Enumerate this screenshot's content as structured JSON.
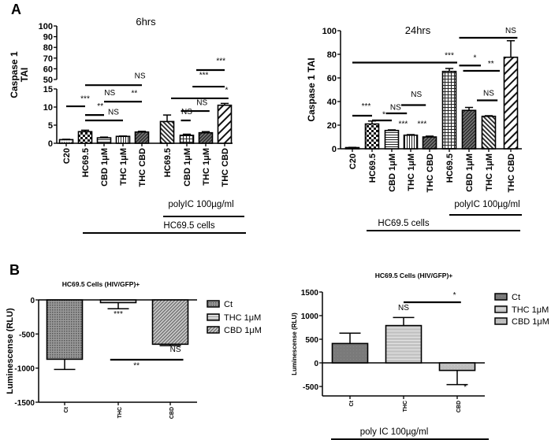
{
  "panel_labels": [
    "A",
    "B"
  ],
  "chart_data": [
    {
      "type": "bar",
      "title": "6hrs",
      "ylabel": "Caspase 1 TAI",
      "ylim": [
        0,
        100
      ],
      "broken_axis": [
        15,
        50
      ],
      "y_ticks": [
        0,
        5,
        10,
        15,
        50,
        60,
        70,
        80,
        90,
        100
      ],
      "categories": [
        "C20",
        "HC69.5",
        "CBD 1μM",
        "THC 1μM",
        "THC CBD",
        "HC69.5",
        "CBD 1μM",
        "THC 1μM",
        "THC CBD"
      ],
      "values": [
        1.0,
        3.2,
        1.5,
        1.9,
        3.1,
        6.0,
        2.2,
        2.9,
        10.5
      ],
      "errors": [
        0.1,
        0.4,
        0.2,
        0.1,
        0.2,
        1.8,
        0.3,
        0.3,
        0.5
      ],
      "fills": [
        "dots",
        "checker",
        "hlines",
        "vlines",
        "diagdense",
        "diagback",
        "grid",
        "diagdense",
        "diagwide"
      ],
      "group_labels": [
        "polyIC 100µg/ml",
        "HC69.5 cells"
      ],
      "annotations": [
        {
          "label": "***",
          "from": 0,
          "to": 1,
          "y": 10.2,
          "label_at": 1.0,
          "label_y": 11.6
        },
        {
          "label": "**",
          "from": 1,
          "to": 2,
          "y": 7.8,
          "label_at": 1.8,
          "label_y": 9.6
        },
        {
          "label": "NS",
          "from": 1,
          "to": 3,
          "y": 6.3,
          "label_at": 2.5,
          "label_y": 7.9
        },
        {
          "label": "NS",
          "from": 2,
          "to": 3,
          "y": 11.5,
          "label_at": 2.3,
          "label_y": 13.3
        },
        {
          "label": "**",
          "from": 3,
          "to": 4,
          "y": 11.5,
          "label_at": 3.6,
          "label_y": 13.1
        },
        {
          "label": "NS",
          "from": 1,
          "to": 4,
          "y": 29,
          "label_at": 3.9,
          "label_y": 51
        },
        {
          "label": "NS",
          "from": 5.7,
          "to": 6.2,
          "y": 6.3,
          "label_at": 6.0,
          "label_y": 8.0
        },
        {
          "label": "NS",
          "from": 5.7,
          "to": 7.2,
          "y": 8.9,
          "label_at": 6.8,
          "label_y": 10.5
        },
        {
          "label": "*",
          "from": 5.2,
          "to": 8.2,
          "y": 12.4,
          "label_at": 8.1,
          "label_y": 14.0
        },
        {
          "label": "***",
          "from": 6.3,
          "to": 8.0,
          "y": 23.5,
          "label_at": 6.9,
          "label_y": 52
        },
        {
          "label": "***",
          "from": 6.5,
          "to": 8.0,
          "y": 58.8,
          "label_at": 7.8,
          "label_y": 65
        }
      ]
    },
    {
      "type": "bar",
      "title": "24hrs",
      "ylabel": "Caspase 1 TAI",
      "ylim": [
        0,
        100
      ],
      "y_ticks": [
        0,
        20,
        40,
        60,
        80,
        100
      ],
      "categories": [
        "C20",
        "HC69.5",
        "CBD 1μM",
        "THC 1μM",
        "THC CBD",
        "HC69.5",
        "CBD 1μM",
        "THC 1μM",
        "THC CBD"
      ],
      "values": [
        1.0,
        21.0,
        15.5,
        11.5,
        10.0,
        65.5,
        32.5,
        27.5,
        77.5
      ],
      "errors": [
        0.2,
        2.5,
        0.5,
        0.5,
        0.7,
        2.5,
        2.5,
        0.5,
        14.0
      ],
      "fills": [
        "dots",
        "checker",
        "hlines",
        "vlines",
        "diagdense",
        "grid",
        "diagdense",
        "diagback",
        "diagwide"
      ],
      "group_labels": [
        "polyIC 100µg/ml",
        "HC69.5 cells"
      ],
      "annotations": [
        {
          "label": "***",
          "from": 0,
          "to": 1,
          "y": 28,
          "label_at": 0.7,
          "label_y": 34
        },
        {
          "label": "*",
          "from": 1,
          "to": 2,
          "y": 24,
          "label_at": 1.6,
          "label_y": 27
        },
        {
          "label": "NS",
          "from": 1.7,
          "to": 2.8,
          "y": 30,
          "label_at": 2.2,
          "label_y": 33
        },
        {
          "label": "NS",
          "from": 2.5,
          "to": 3.8,
          "y": 37,
          "label_at": 3.3,
          "label_y": 44
        },
        {
          "label": "***",
          "from": 2.6,
          "to": 2.6,
          "y": null,
          "label_at": 2.6,
          "label_y": 19
        },
        {
          "label": "***",
          "from": 3.6,
          "to": 3.6,
          "y": null,
          "label_at": 3.6,
          "label_y": 19
        },
        {
          "label": "***",
          "from": 0,
          "to": 5.4,
          "y": 73,
          "label_at": 5.0,
          "label_y": 77
        },
        {
          "label": "*",
          "from": 5.5,
          "to": 6.6,
          "y": 70.5,
          "label_at": 6.3,
          "label_y": 75
        },
        {
          "label": "**",
          "from": 5.7,
          "to": 7.5,
          "y": 66,
          "label_at": 7.1,
          "label_y": 70
        },
        {
          "label": "NS",
          "from": 6.4,
          "to": 7.4,
          "y": 41,
          "label_at": 7.0,
          "label_y": 45
        },
        {
          "label": "NS",
          "from": 5.5,
          "to": 8.3,
          "y": 94,
          "label_at": 8.0,
          "label_y": 98
        }
      ]
    },
    {
      "type": "bar",
      "title": "HC69.5 Cells (HIV/GFP)+",
      "ylabel": "Luminescense (RLU)",
      "ylim": [
        -1500,
        0
      ],
      "y_ticks": [
        0,
        -500,
        -1000,
        -1500
      ],
      "categories": [
        "Ct",
        "THC",
        "CBD"
      ],
      "values": [
        -870,
        -40,
        -650
      ],
      "errors": [
        150,
        90,
        20
      ],
      "fills": [
        "darkcross",
        "lighthlines",
        "diaggrey"
      ],
      "legend": [
        "Ct",
        "THC 1μM",
        "CBD 1μM"
      ],
      "legend_position": "right",
      "annotations": [
        {
          "label": "***",
          "from": 1,
          "to": 1,
          "y": null,
          "label_at": 1.0,
          "label_y": -240
        },
        {
          "label": "NS",
          "from": 2.1,
          "to": 2.1,
          "y": null,
          "label_at": 2.1,
          "label_y": -760
        },
        {
          "label": "**",
          "from": 0.85,
          "to": 2.25,
          "y": -877,
          "label_at": 1.35,
          "label_y": -1000
        }
      ]
    },
    {
      "type": "bar",
      "title": "HC69.5 Cells (HIV/GFP)+",
      "ylabel": "Luminescense (RLU)",
      "ylim": [
        -700,
        1500
      ],
      "y_ticks": [
        1500,
        1000,
        500,
        0,
        -500
      ],
      "categories": [
        "Ct",
        "THC",
        "CBD"
      ],
      "values": [
        410,
        790,
        -160
      ],
      "errors": [
        220,
        170,
        300
      ],
      "fills": [
        "solidgrey",
        "lightlines",
        "lightgrey"
      ],
      "legend": [
        "Ct",
        "THC 1μM",
        "CBD 1μM"
      ],
      "legend_position": "right",
      "group_labels": [
        "poly IC 100µg/ml"
      ],
      "annotations": [
        {
          "label": "*",
          "from": 1,
          "to": 2.07,
          "y": 1283,
          "label_at": 1.95,
          "label_y": 1380
        },
        {
          "label": "NS",
          "from": 1,
          "to": 1,
          "y": null,
          "label_at": 1.0,
          "label_y": 1120
        },
        {
          "label": "*",
          "from": 2.15,
          "to": 2.15,
          "y": null,
          "label_at": 2.15,
          "label_y": -570
        }
      ]
    }
  ]
}
